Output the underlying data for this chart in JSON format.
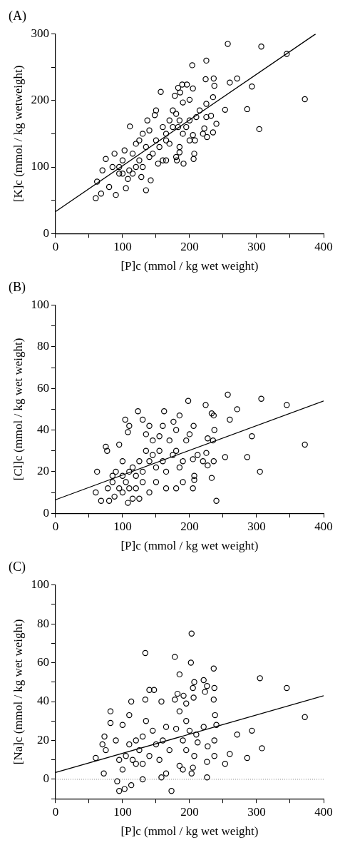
{
  "chart_data": [
    {
      "type": "scatter",
      "title": "(A)",
      "xlabel": "[P]c (mmol / kg wet weight)",
      "ylabel": "[K]c (mmol / kg wetweight)",
      "xlim": [
        0,
        400
      ],
      "ylim": [
        0,
        300
      ],
      "xticks": [
        0,
        {
          "value": 50,
          "label": null
        },
        100,
        {
          "value": 150,
          "label": null
        },
        200,
        {
          "value": 250,
          "label": null
        },
        300,
        {
          "value": 350,
          "label": null
        },
        400
      ],
      "yticks": [
        0,
        {
          "value": 50,
          "label": null
        },
        100,
        {
          "value": 150,
          "label": null
        },
        200,
        {
          "value": 250,
          "label": null
        },
        300
      ],
      "marker": "circle",
      "series": [
        {
          "type": "scatter",
          "color": "#000000",
          "x": [
            257,
            307,
            345,
            372,
            304,
            286,
            293,
            253,
            271,
            260,
            204,
            225,
            224,
            236,
            237,
            235,
            240,
            235,
            226,
            222,
            225,
            232,
            205,
            200,
            196,
            189,
            183,
            186,
            178,
            157,
            190,
            207,
            206,
            208,
            205,
            191,
            181,
            185,
            183,
            180,
            175,
            170,
            165,
            160,
            150,
            148,
            137,
            111,
            135,
            142,
            90,
            60,
            62,
            70,
            68,
            75,
            80,
            85,
            88,
            95,
            100,
            103,
            105,
            110,
            115,
            120,
            125,
            130,
            135,
            140,
            145,
            150,
            155,
            160,
            165,
            170,
            175,
            185,
            195,
            200,
            210,
            215,
            225,
            220,
            120,
            115,
            125,
            130,
            140,
            100,
            95,
            108,
            128,
            153,
            165,
            180,
            185,
            190,
            200
          ],
          "values": [
            285,
            281,
            270,
            202,
            157,
            187,
            221,
            186,
            233,
            227,
            253,
            260,
            232,
            233,
            222,
            205,
            165,
            152,
            145,
            158,
            175,
            177,
            218,
            201,
            224,
            224,
            219,
            212,
            207,
            213,
            197,
            120,
            112,
            140,
            148,
            105,
            110,
            122,
            160,
            180,
            185,
            170,
            150,
            160,
            185,
            178,
            170,
            161,
            65,
            80,
            58,
            53,
            78,
            95,
            60,
            112,
            70,
            100,
            120,
            90,
            110,
            125,
            68,
            95,
            120,
            135,
            140,
            150,
            130,
            155,
            120,
            140,
            130,
            110,
            140,
            135,
            160,
            170,
            160,
            170,
            175,
            185,
            195,
            150,
            100,
            90,
            110,
            100,
            115,
            90,
            100,
            82,
            85,
            105,
            110,
            115,
            130,
            150,
            140
          ]
        },
        {
          "type": "line",
          "color": "#000000",
          "x": [
            0,
            388
          ],
          "values": [
            33,
            300
          ],
          "marker": "none",
          "line_style": "solid"
        }
      ]
    },
    {
      "type": "scatter",
      "title": "(B)",
      "xlabel": "[P]c (mmol / kg wet weight)",
      "ylabel": "[Cl]c (mmol / kg wet weight)",
      "xlim": [
        0,
        400
      ],
      "ylim": [
        0,
        100
      ],
      "xticks": [
        0,
        {
          "value": 50,
          "label": null
        },
        100,
        {
          "value": 150,
          "label": null
        },
        200,
        {
          "value": 250,
          "label": null
        },
        300,
        {
          "value": 350,
          "label": null
        },
        400
      ],
      "yticks": [
        0,
        {
          "value": 10,
          "label": null
        },
        20,
        {
          "value": 30,
          "label": null
        },
        40,
        {
          "value": 50,
          "label": null
        },
        60,
        {
          "value": 70,
          "label": null
        },
        80,
        {
          "value": 90,
          "label": null
        },
        100
      ],
      "marker": "circle",
      "series": [
        {
          "type": "scatter",
          "color": "#000000",
          "x": [
            257,
            307,
            345,
            372,
            305,
            286,
            293,
            253,
            271,
            260,
            198,
            224,
            233,
            236,
            237,
            235,
            240,
            233,
            236,
            227,
            225,
            227,
            206,
            205,
            205,
            207,
            207,
            212,
            220,
            162,
            123,
            104,
            130,
            185,
            176,
            180,
            160,
            140,
            110,
            108,
            75,
            77,
            62,
            60,
            68,
            80,
            88,
            108,
            115,
            125,
            140,
            95,
            100,
            90,
            85,
            95,
            100,
            105,
            110,
            115,
            120,
            125,
            130,
            135,
            140,
            145,
            150,
            155,
            160,
            165,
            170,
            175,
            180,
            185,
            190,
            195,
            200,
            150,
            165,
            180,
            190,
            120,
            130,
            145,
            155,
            100,
            110,
            135,
            78,
            85
          ],
          "values": [
            57,
            55,
            52,
            33,
            20,
            27,
            37,
            27,
            50,
            45,
            54,
            52,
            48,
            47,
            40,
            35,
            6,
            17,
            25,
            23,
            29,
            36,
            42,
            26,
            12,
            18,
            16,
            28,
            25,
            49,
            49,
            45,
            45,
            47,
            44,
            40,
            42,
            42,
            42,
            39,
            32,
            30,
            20,
            10,
            6,
            6,
            8,
            5,
            7,
            7,
            10,
            33,
            25,
            20,
            15,
            12,
            18,
            15,
            20,
            22,
            18,
            25,
            20,
            30,
            25,
            28,
            22,
            30,
            25,
            20,
            35,
            28,
            30,
            22,
            25,
            35,
            38,
            15,
            12,
            12,
            15,
            12,
            15,
            35,
            37,
            10,
            12,
            38,
            12,
            18
          ]
        },
        {
          "type": "line",
          "color": "#000000",
          "x": [
            0,
            400
          ],
          "values": [
            6.5,
            54
          ],
          "marker": "none",
          "line_style": "solid"
        }
      ]
    },
    {
      "type": "scatter",
      "title": "(C)",
      "xlabel": "[P]c (mmol / kg wet weight)",
      "ylabel": "[Na]c (mmol / kg wet weight)",
      "xlim": [
        0,
        400
      ],
      "ylim": [
        -10,
        100
      ],
      "xticks": [
        0,
        {
          "value": 50,
          "label": null
        },
        100,
        {
          "value": 150,
          "label": null
        },
        200,
        {
          "value": 250,
          "label": null
        },
        300,
        {
          "value": 350,
          "label": null
        },
        400
      ],
      "yticks": [
        {
          "value": -10,
          "label": null
        },
        0,
        {
          "value": 10,
          "label": null
        },
        20,
        {
          "value": 30,
          "label": null
        },
        40,
        {
          "value": 50,
          "label": null
        },
        60,
        {
          "value": 70,
          "label": null
        },
        80,
        {
          "value": 90,
          "label": null
        },
        100
      ],
      "marker": "circle",
      "ref_lines": [
        {
          "axis": "y",
          "value": 0,
          "color": "#808080",
          "line_style": "dotted"
        }
      ],
      "series": [
        {
          "type": "scatter",
          "color": "#000000",
          "x": [
            203,
            134,
            178,
            202,
            236,
            185,
            305,
            345,
            372,
            308,
            293,
            286,
            271,
            260,
            253,
            237,
            236,
            221,
            226,
            223,
            207,
            206,
            205,
            238,
            240,
            237,
            237,
            227,
            226,
            226,
            221,
            212,
            210,
            207,
            205,
            203,
            195,
            191,
            182,
            178,
            158,
            147,
            140,
            113,
            134,
            82,
            82,
            73,
            60,
            70,
            75,
            72,
            95,
            103,
            113,
            173,
            92,
            130,
            158,
            165,
            185,
            190,
            200,
            195,
            100,
            110,
            120,
            125,
            115,
            105,
            95,
            90,
            100,
            110,
            130,
            140,
            150,
            160,
            170,
            180,
            190,
            135,
            145,
            155,
            120,
            130,
            165,
            185,
            195
          ],
          "values": [
            75,
            65,
            63,
            60,
            57,
            54,
            52,
            47,
            32,
            16,
            25,
            11,
            23,
            13,
            8,
            47,
            41,
            51,
            48,
            45,
            50,
            42,
            47,
            33,
            28,
            20,
            12,
            17,
            9,
            1,
            27,
            19,
            23,
            12,
            6,
            3,
            39,
            43,
            44,
            41,
            40,
            46,
            46,
            40,
            41,
            35,
            29,
            22,
            11,
            18,
            15,
            3,
            -6,
            -5,
            -3,
            -6,
            -1,
            0,
            1,
            3,
            7,
            5,
            25,
            30,
            28,
            33,
            20,
            15,
            10,
            12,
            10,
            20,
            5,
            18,
            22,
            12,
            18,
            20,
            15,
            26,
            20,
            30,
            25,
            10,
            8,
            8,
            27,
            35,
            15
          ]
        },
        {
          "type": "line",
          "color": "#000000",
          "x": [
            0,
            400
          ],
          "values": [
            3.5,
            43
          ],
          "marker": "none",
          "line_style": "solid"
        }
      ]
    }
  ]
}
